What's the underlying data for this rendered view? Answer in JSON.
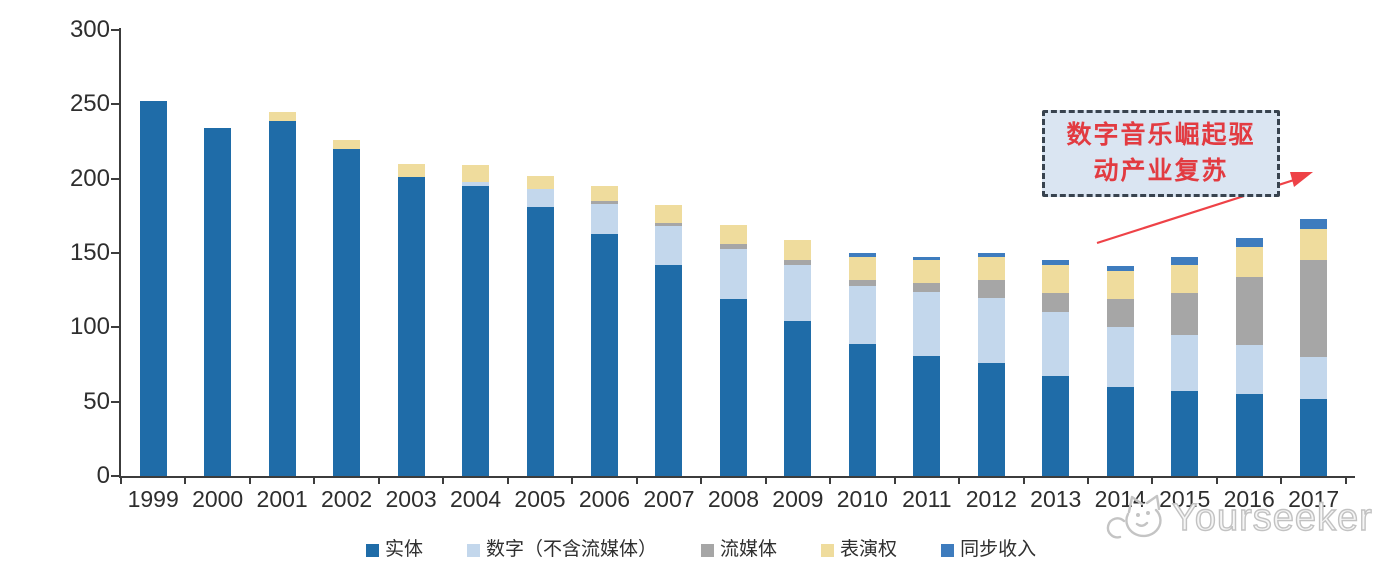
{
  "chart_data": {
    "type": "bar",
    "variant": "stacked",
    "title": "",
    "xlabel": "",
    "ylabel": "",
    "ylim": [
      0,
      300
    ],
    "yticks": [
      0,
      50,
      100,
      150,
      200,
      250,
      300
    ],
    "grid": false,
    "legend_position": "bottom",
    "categories": [
      "1999",
      "2000",
      "2001",
      "2002",
      "2003",
      "2004",
      "2005",
      "2006",
      "2007",
      "2008",
      "2009",
      "2010",
      "2011",
      "2012",
      "2013",
      "2014",
      "2015",
      "2016",
      "2017"
    ],
    "series": [
      {
        "name": "实体",
        "color": "#1f6ca8",
        "values": [
          252,
          234,
          239,
          220,
          201,
          195,
          181,
          163,
          142,
          119,
          104,
          89,
          81,
          76,
          67,
          60,
          57,
          55,
          52
        ]
      },
      {
        "name": "数字（不含流媒体）",
        "color": "#c3d7ec",
        "values": [
          0,
          0,
          0,
          0,
          0,
          3,
          12,
          20,
          26,
          34,
          38,
          39,
          43,
          44,
          43,
          40,
          38,
          33,
          28
        ]
      },
      {
        "name": "流媒体",
        "color": "#a6a6a6",
        "values": [
          0,
          0,
          0,
          0,
          0,
          0,
          0,
          2,
          2,
          3,
          3,
          4,
          6,
          12,
          13,
          19,
          28,
          46,
          65
        ]
      },
      {
        "name": "表演权",
        "color": "#efdc9d",
        "values": [
          0,
          0,
          6,
          6,
          9,
          11,
          9,
          10,
          12,
          13,
          14,
          15,
          15,
          15,
          19,
          19,
          19,
          20,
          21
        ]
      },
      {
        "name": "同步收入",
        "color": "#3e7cbe",
        "values": [
          0,
          0,
          0,
          0,
          0,
          0,
          0,
          0,
          0,
          0,
          0,
          3,
          2,
          3,
          3,
          3,
          5,
          6,
          7
        ]
      }
    ]
  },
  "annotation": {
    "line1": "数字音乐崛起驱",
    "line2": "动产业复苏",
    "text_color": "#e23b41",
    "box_fill": "#dae5f2",
    "box_border": "#38434f",
    "arrow_color": "#ee4247"
  },
  "watermark": {
    "text": "Yourseeker",
    "color": "#c2c2c2"
  }
}
